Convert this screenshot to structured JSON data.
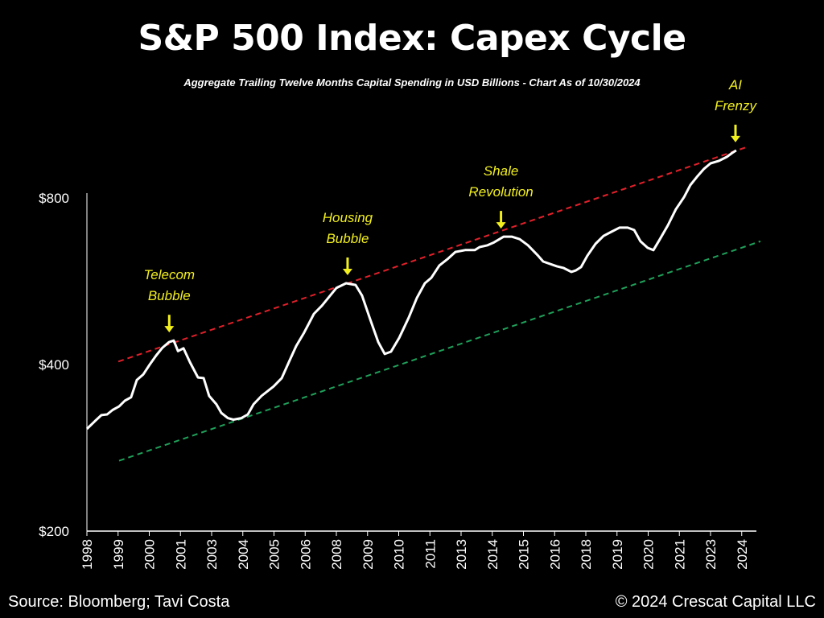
{
  "title": "S&P 500 Index: Capex Cycle",
  "subtitle": "Aggregate Trailing Twelve Months Capital Spending in USD Billions - Chart As of 10/30/2024",
  "footer": {
    "source": "Source: Bloomberg; Tavi Costa",
    "copyright": "© 2024 Crescat Capital LLC"
  },
  "chart_data": {
    "type": "line",
    "title": "S&P 500 Index: Capex Cycle",
    "y_scale": "log",
    "ylim": [
      200,
      1000
    ],
    "xlim": [
      1998,
      2025
    ],
    "grid": false,
    "legend": "none",
    "y_ticks": [
      {
        "value": 200,
        "label": "$200"
      },
      {
        "value": 400,
        "label": "$400"
      },
      {
        "value": 800,
        "label": "$800"
      }
    ],
    "x_ticks": [
      {
        "value": 1998.0,
        "label": "1998"
      },
      {
        "value": 1999.25,
        "label": "1999"
      },
      {
        "value": 2000.5,
        "label": "2000"
      },
      {
        "value": 2001.75,
        "label": "2001"
      },
      {
        "value": 2003.0,
        "label": "2003"
      },
      {
        "value": 2004.25,
        "label": "2004"
      },
      {
        "value": 2005.5,
        "label": "2005"
      },
      {
        "value": 2006.75,
        "label": "2006"
      },
      {
        "value": 2008.0,
        "label": "2008"
      },
      {
        "value": 2009.25,
        "label": "2009"
      },
      {
        "value": 2010.5,
        "label": "2010"
      },
      {
        "value": 2011.75,
        "label": "2011"
      },
      {
        "value": 2013.0,
        "label": "2013"
      },
      {
        "value": 2014.25,
        "label": "2014"
      },
      {
        "value": 2015.5,
        "label": "2015"
      },
      {
        "value": 2016.75,
        "label": "2016"
      },
      {
        "value": 2018.0,
        "label": "2018"
      },
      {
        "value": 2019.25,
        "label": "2019"
      },
      {
        "value": 2020.5,
        "label": "2020"
      },
      {
        "value": 2021.75,
        "label": "2021"
      },
      {
        "value": 2023.0,
        "label": "2023"
      },
      {
        "value": 2024.25,
        "label": "2024"
      }
    ],
    "series": [
      {
        "color": "#ffffff",
        "x": [
          1998.0,
          1998.32,
          1998.58,
          1998.81,
          1999.03,
          1999.29,
          1999.52,
          1999.77,
          2000.0,
          2000.26,
          2000.52,
          2000.77,
          2001.03,
          2001.29,
          2001.48,
          2001.65,
          2001.87,
          2002.13,
          2002.45,
          2002.68,
          2002.9,
          2003.19,
          2003.39,
          2003.65,
          2003.87,
          2004.19,
          2004.45,
          2004.68,
          2005.0,
          2005.48,
          2005.81,
          2006.13,
          2006.39,
          2006.71,
          2007.1,
          2007.42,
          2007.74,
          2008.0,
          2008.39,
          2008.77,
          2009.03,
          2009.35,
          2009.68,
          2009.94,
          2010.19,
          2010.52,
          2010.9,
          2011.23,
          2011.55,
          2011.81,
          2012.13,
          2012.45,
          2012.77,
          2013.16,
          2013.55,
          2013.74,
          2014.06,
          2014.32,
          2014.71,
          2015.03,
          2015.35,
          2015.68,
          2016.06,
          2016.29,
          2016.84,
          2017.1,
          2017.42,
          2017.61,
          2017.81,
          2018.06,
          2018.39,
          2018.71,
          2019.03,
          2019.35,
          2019.68,
          2019.94,
          2020.19,
          2020.48,
          2020.71,
          2020.97,
          2021.29,
          2021.61,
          2021.94,
          2022.19,
          2022.45,
          2022.74,
          2023.0,
          2023.32,
          2023.65,
          2023.87,
          2024.03
        ],
        "y": [
          306,
          316,
          324,
          325,
          331,
          336,
          344,
          349,
          375,
          384,
          400,
          415,
          429,
          439,
          442,
          423,
          428,
          404,
          379,
          378,
          351,
          339,
          327,
          320,
          318,
          320,
          325,
          339,
          351,
          365,
          378,
          407,
          432,
          457,
          494,
          511,
          532,
          550,
          561,
          557,
          533,
          484,
          439,
          418,
          422,
          447,
          486,
          528,
          561,
          574,
          604,
          620,
          639,
          644,
          644,
          652,
          657,
          665,
          681,
          681,
          674,
          657,
          631,
          614,
          602,
          598,
          588,
          592,
          600,
          629,
          661,
          683,
          695,
          707,
          707,
          700,
          668,
          650,
          644,
          674,
          714,
          763,
          803,
          844,
          873,
          903,
          924,
          933,
          949,
          965,
          975
        ]
      }
    ],
    "trendlines": [
      {
        "name": "upper",
        "color": "#e0202a",
        "style": "dashed",
        "x": [
          1999.26,
          2024.52
        ],
        "y": [
          405,
          991
        ]
      },
      {
        "name": "lower",
        "color": "#1fa05a",
        "style": "dashed",
        "x": [
          1999.29,
          2025.0
        ],
        "y": [
          268,
          668
        ]
      }
    ],
    "annotations": [
      {
        "lines": [
          "Telecom",
          "Bubble"
        ],
        "x": 2001.3,
        "y": 442
      },
      {
        "lines": [
          "Housing",
          "Bubble"
        ],
        "x": 2008.45,
        "y": 561
      },
      {
        "lines": [
          "Shale",
          "Revolution"
        ],
        "x": 2014.6,
        "y": 681
      },
      {
        "lines": [
          "AI",
          "Frenzy"
        ],
        "x": 2024.0,
        "y": 975
      }
    ],
    "annotation_color": "#f2ef1e"
  }
}
